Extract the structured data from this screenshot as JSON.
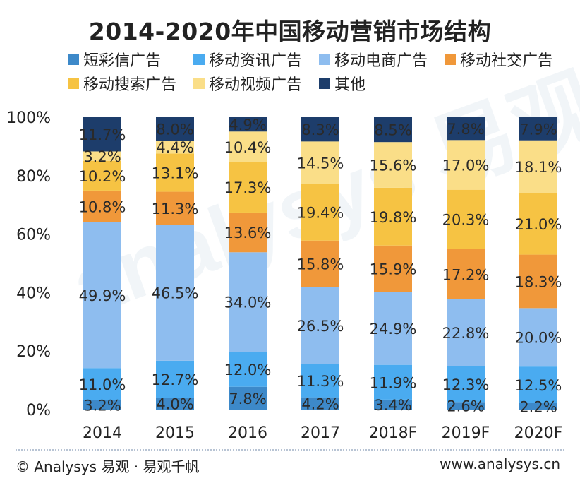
{
  "chart_data": {
    "type": "bar",
    "stacked": true,
    "title": "2014-2020年中国移动营销市场结构",
    "xlabel": "",
    "ylabel": "",
    "ylim": [
      0,
      100
    ],
    "yticks": [
      "0%",
      "20%",
      "40%",
      "60%",
      "80%",
      "100%"
    ],
    "categories": [
      "2014",
      "2015",
      "2016",
      "2017",
      "2018F",
      "2019F",
      "2020F"
    ],
    "legend_position": "top",
    "series": [
      {
        "name": "短彩信广告",
        "color": "#3d89c9",
        "values": [
          3.2,
          4.0,
          7.8,
          4.2,
          3.4,
          2.6,
          2.2
        ],
        "labels": [
          "3.2%",
          "4.0%",
          "7.8%",
          "4.2%",
          "3.4%",
          "2.6%",
          "2.2%"
        ]
      },
      {
        "name": "移动资讯广告",
        "color": "#4aabf0",
        "values": [
          11.0,
          12.7,
          12.0,
          11.3,
          11.9,
          12.3,
          12.5
        ],
        "labels": [
          "11.0%",
          "12.7%",
          "12.0%",
          "11.3%",
          "11.9%",
          "12.3%",
          "12.5%"
        ]
      },
      {
        "name": "移动电商广告",
        "color": "#8ebdef",
        "values": [
          49.9,
          46.5,
          34.0,
          26.5,
          24.9,
          22.8,
          20.0
        ],
        "labels": [
          "49.9%",
          "46.5%",
          "34.0%",
          "26.5%",
          "24.9%",
          "22.8%",
          "20.0%"
        ]
      },
      {
        "name": "移动社交广告",
        "color": "#f0983a",
        "values": [
          10.8,
          11.3,
          13.6,
          15.8,
          15.9,
          17.2,
          18.3
        ],
        "labels": [
          "10.8%",
          "11.3%",
          "13.6%",
          "15.8%",
          "15.9%",
          "17.2%",
          "18.3%"
        ]
      },
      {
        "name": "移动搜索广告",
        "color": "#f6c343",
        "values": [
          10.2,
          13.1,
          17.3,
          19.4,
          19.8,
          20.3,
          21.0
        ],
        "labels": [
          "10.2%",
          "13.1%",
          "17.3%",
          "19.4%",
          "19.8%",
          "20.3%",
          "21.0%"
        ]
      },
      {
        "name": "移动视频广告",
        "color": "#fade88",
        "values": [
          3.2,
          4.4,
          10.4,
          14.5,
          15.6,
          17.0,
          18.1
        ],
        "labels": [
          "3.2%",
          "4.4%",
          "10.4%",
          "14.5%",
          "15.6%",
          "17.0%",
          "18.1%"
        ]
      },
      {
        "name": "其他",
        "color": "#1d3d6b",
        "values": [
          11.7,
          8.0,
          4.9,
          8.3,
          8.5,
          7.8,
          7.9
        ],
        "labels": [
          "11.7%",
          "8.0%",
          "4.9%",
          "8.3%",
          "8.5%",
          "7.8%",
          "7.9%"
        ]
      }
    ]
  },
  "footer": {
    "left": "© Analysys 易观 · 易观千帆",
    "right": "www.analysys.cn"
  }
}
